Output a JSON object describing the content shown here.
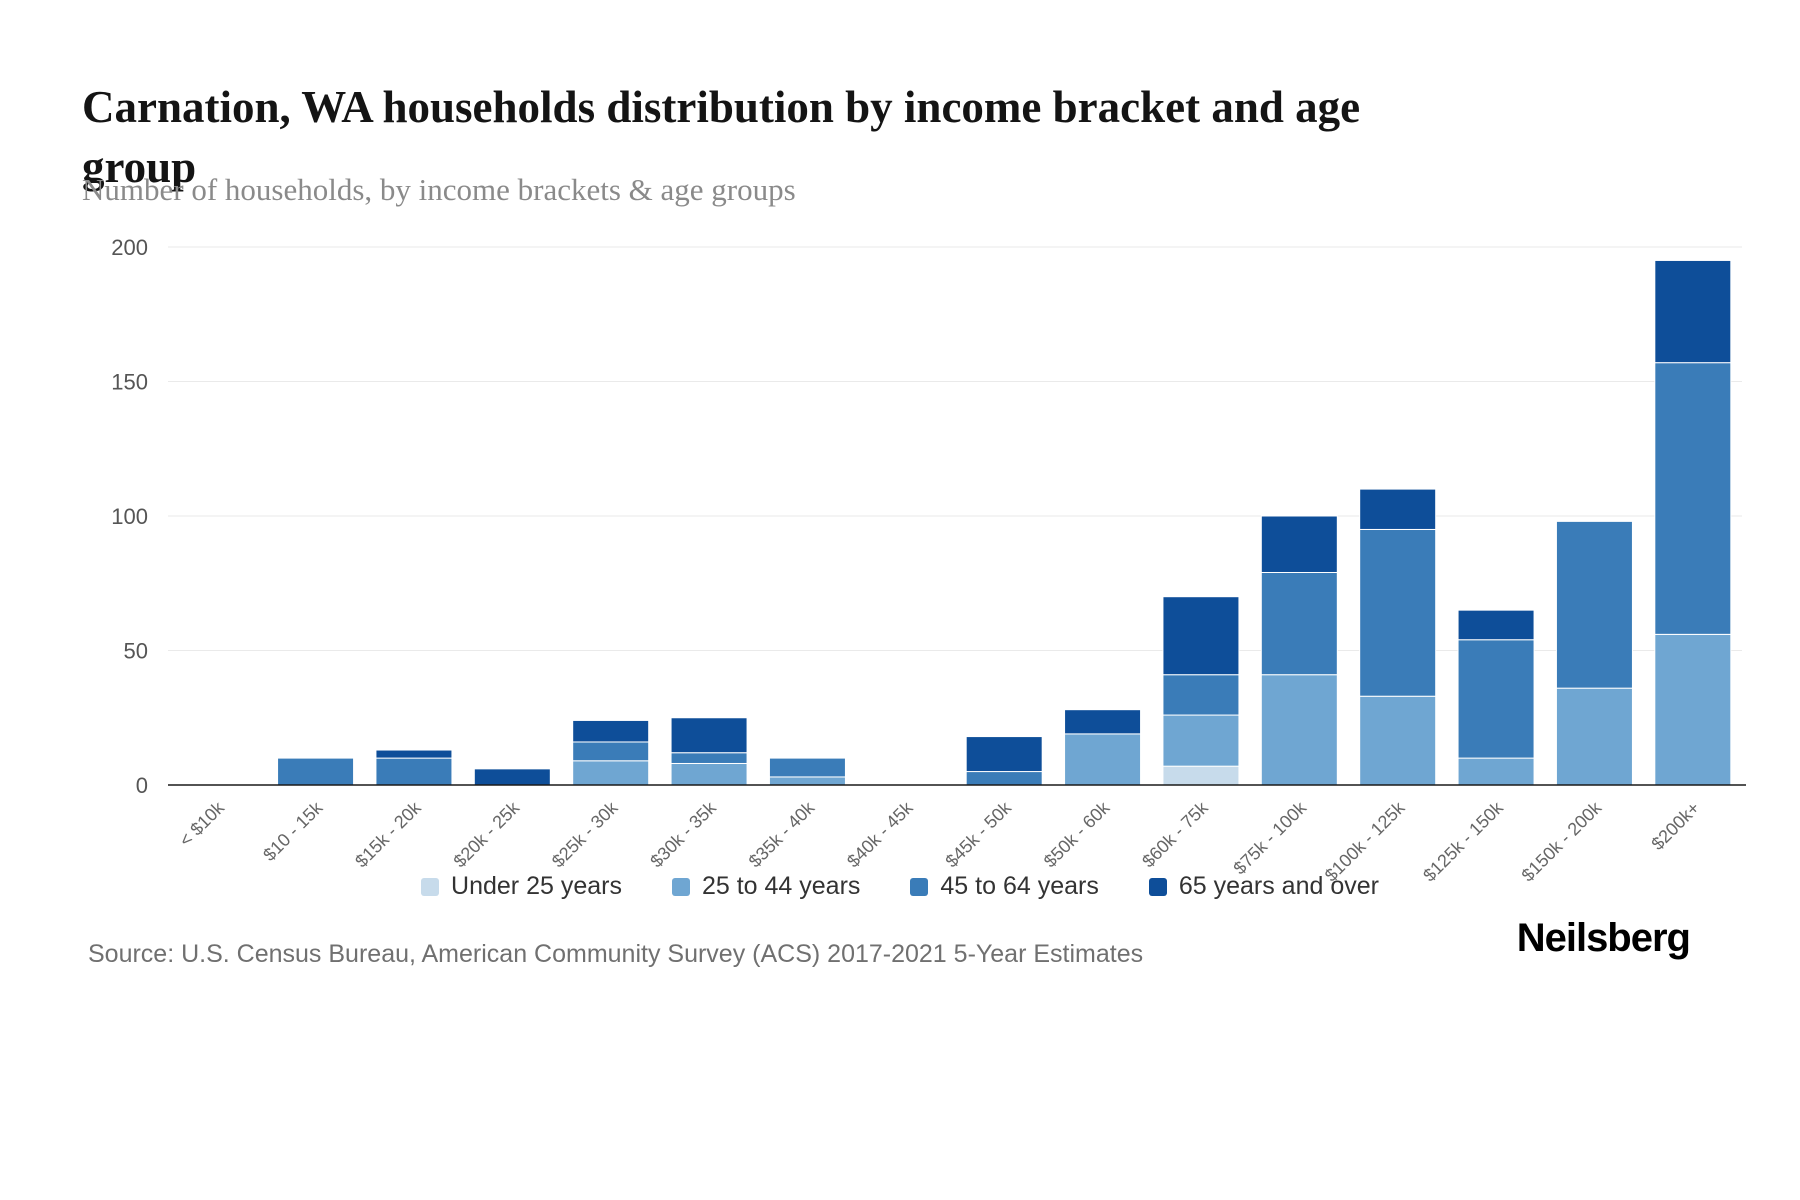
{
  "page": {
    "title": "Carnation, WA households distribution by income bracket and age group",
    "subtitle": "Number of households, by income brackets & age groups",
    "source": "Source: U.S. Census Bureau, American Community Survey (ACS) 2017-2021 5-Year Estimates",
    "logo": "Neilsberg"
  },
  "chart_data": {
    "type": "bar",
    "stacked": true,
    "title": "Carnation, WA households distribution by income bracket and age group",
    "subtitle": "Number of households, by income brackets & age groups",
    "categories": [
      "< $10k",
      "$10 - 15k",
      "$15k - 20k",
      "$20k - 25k",
      "$25k - 30k",
      "$30k - 35k",
      "$35k - 40k",
      "$40k - 45k",
      "$45k - 50k",
      "$50k - 60k",
      "$60k - 75k",
      "$75k - 100k",
      "$100k - 125k",
      "$125k - 150k",
      "$150k - 200k",
      "$200k+"
    ],
    "series": [
      {
        "name": "Under 25 years",
        "color": "#c7dbeb",
        "values": [
          0,
          0,
          0,
          0,
          0,
          0,
          0,
          0,
          0,
          0,
          7,
          0,
          0,
          0,
          0,
          0
        ]
      },
      {
        "name": "25 to 44 years",
        "color": "#6fa6d2",
        "values": [
          0,
          0,
          0,
          0,
          9,
          8,
          3,
          0,
          0,
          19,
          19,
          41,
          33,
          10,
          36,
          56
        ]
      },
      {
        "name": "45 to 64 years",
        "color": "#3a7cb8",
        "values": [
          0,
          10,
          10,
          0,
          7,
          4,
          7,
          0,
          5,
          0,
          15,
          38,
          62,
          44,
          62,
          101
        ]
      },
      {
        "name": "65 years and over",
        "color": "#0e4e99",
        "values": [
          0,
          0,
          3,
          6,
          8,
          13,
          0,
          0,
          13,
          9,
          29,
          21,
          15,
          11,
          0,
          38
        ]
      }
    ],
    "ylim": [
      0,
      200
    ],
    "yticks": [
      0,
      50,
      100,
      150,
      200
    ],
    "xlabel": "",
    "ylabel": "",
    "grid": true,
    "legend_position": "bottom"
  }
}
